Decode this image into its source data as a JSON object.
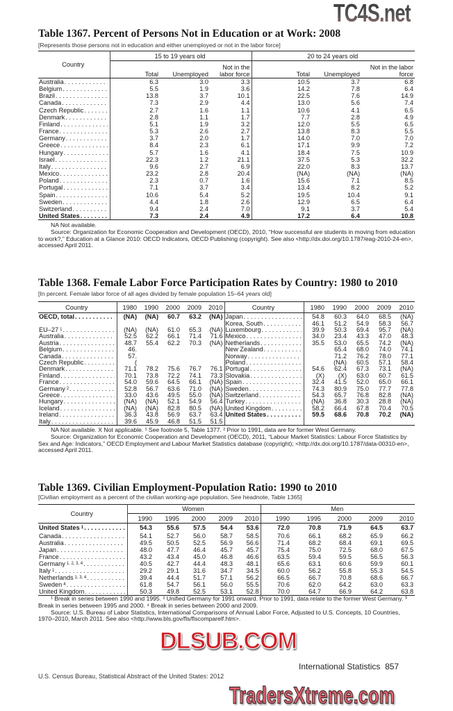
{
  "watermarks": {
    "top_right": "TC4S.net",
    "middle": "DLSUB.COM",
    "bottom": "TradersXtreme.com"
  },
  "t1367": {
    "title": "Table 1367. Percent of Persons Not in Education or at Work: 2008",
    "subtitle": "[Represents those persons not in education and either unemployed or not in the labor force]",
    "country_header": "Country",
    "groups": [
      "15 to 19 years old",
      "20 to 24 years old"
    ],
    "columns": [
      "Total",
      "Unemployed",
      "Not in the labor force",
      "Total",
      "Unemployed",
      "Not in the labor force"
    ],
    "rows": [
      {
        "country": "Australia",
        "values": [
          "6.3",
          "3.0",
          "3.3",
          "10.5",
          "3.7",
          "6.8"
        ]
      },
      {
        "country": "Belgium",
        "values": [
          "5.5",
          "1.9",
          "3.6",
          "14.2",
          "7.8",
          "6.4"
        ]
      },
      {
        "country": "Brazil",
        "values": [
          "13.8",
          "3.7",
          "10.1",
          "22.5",
          "7.6",
          "14.9"
        ]
      },
      {
        "country": "Canada",
        "values": [
          "7.3",
          "2.9",
          "4.4",
          "13.0",
          "5.6",
          "7.4"
        ]
      },
      {
        "country": "Czech Republic",
        "values": [
          "2.7",
          "1.6",
          "1.1",
          "10.6",
          "4.1",
          "6.5"
        ]
      },
      {
        "country": "Denmark",
        "values": [
          "2.8",
          "1.1",
          "1.7",
          "7.7",
          "2.8",
          "4.9"
        ]
      },
      {
        "country": "Finland",
        "values": [
          "5.1",
          "1.9",
          "3.2",
          "12.0",
          "5.5",
          "6.5"
        ]
      },
      {
        "country": "France",
        "values": [
          "5.3",
          "2.6",
          "2.7",
          "13.8",
          "8.3",
          "5.5"
        ]
      },
      {
        "country": "Germany",
        "values": [
          "3.7",
          "2.0",
          "1.7",
          "14.0",
          "7.0",
          "7.0"
        ]
      },
      {
        "country": "Greece",
        "values": [
          "8.4",
          "2.3",
          "6.1",
          "17.1",
          "9.9",
          "7.2"
        ]
      },
      {
        "country": "Hungary",
        "values": [
          "5.7",
          "1.6",
          "4.1",
          "18.4",
          "7.5",
          "10.9"
        ]
      },
      {
        "country": "Israel",
        "values": [
          "22.3",
          "1.2",
          "21.1",
          "37.5",
          "5.3",
          "32.2"
        ]
      },
      {
        "country": "Italy",
        "values": [
          "9.6",
          "2.7",
          "6.9",
          "22.0",
          "8.3",
          "13.7"
        ]
      },
      {
        "country": "Mexico",
        "values": [
          "23.2",
          "2.8",
          "20.4",
          "(NA)",
          "(NA)",
          "(NA)"
        ]
      },
      {
        "country": "Poland",
        "values": [
          "2.3",
          "0.7",
          "1.6",
          "15.6",
          "7.1",
          "8.5"
        ]
      },
      {
        "country": "Portugal",
        "values": [
          "7.1",
          "3.7",
          "3.4",
          "13.4",
          "8.2",
          "5.2"
        ]
      },
      {
        "country": "Spain",
        "values": [
          "10.6",
          "5.4",
          "5.2",
          "19.5",
          "10.4",
          "9.1"
        ]
      },
      {
        "country": "Sweden",
        "values": [
          "4.4",
          "1.8",
          "2.6",
          "12.9",
          "6.5",
          "6.4"
        ]
      },
      {
        "country": "Switzerland",
        "values": [
          "9.4",
          "2.4",
          "7.0",
          "9.1",
          "3.7",
          "5.4"
        ]
      },
      {
        "country": "United States",
        "emphasis": true,
        "values": [
          "7.3",
          "2.4",
          "4.9",
          "17.2",
          "6.4",
          "10.8"
        ]
      }
    ],
    "notes": [
      "NA Not available.",
      "Source: Organization for Economic Cooperation and Development (OECD), 2010, “How successful are students in moving from education to work?,” Education at a Glance 2010: OECD Indicators, OECD Publishing (copyright). See also <http://dx.doi.org/10.1787/eag-2010-24-en>, accessed April 2011."
    ]
  },
  "t1368": {
    "title": "Table 1368. Female Labor Force Participation Rates by Country: 1980 to 2010",
    "subtitle": "[In percent. Female labor force of all ages divided by female population 15–64 years old]",
    "country_header": "Country",
    "years": [
      "1980",
      "1990",
      "2000",
      "2009",
      "2010"
    ],
    "left": [
      {
        "country": "OECD, total",
        "emphasis": true,
        "values": [
          "(NA)",
          "(NA)",
          "60.7",
          "63.2",
          "(NA)"
        ]
      },
      {
        "country": "",
        "values": [
          "",
          "",
          "",
          "",
          ""
        ]
      },
      {
        "country": "EU–27",
        "note": "1",
        "values": [
          "(NA)",
          "(NA)",
          "61.0",
          "65.3",
          "(NA)"
        ]
      },
      {
        "country": "Australia",
        "values": [
          "52.5",
          "62.2",
          "66.1",
          "71.4",
          "71.6"
        ]
      },
      {
        "country": "Austria",
        "values": [
          "48.7",
          "55.4",
          "62.2",
          "70.3",
          "(NA)"
        ]
      },
      {
        "country": "Belgium",
        "values": [
          "46.",
          "",
          "",
          "",
          ""
        ]
      },
      {
        "country": "Canada",
        "values": [
          "57.",
          "",
          "",
          "",
          ""
        ]
      },
      {
        "country": "Czech Republic",
        "values": [
          "(",
          "",
          "",
          "",
          ""
        ]
      },
      {
        "country": "Denmark",
        "values": [
          "71.1",
          "78.2",
          "75.6",
          "76.7",
          "76.1"
        ]
      },
      {
        "country": "Finland",
        "values": [
          "70.1",
          "73.8",
          "72.2",
          "74.1",
          "73.3"
        ]
      },
      {
        "country": "France",
        "values": [
          "54.0",
          "59.6",
          "64.5",
          "66.1",
          "(NA)"
        ]
      },
      {
        "country": "Germany",
        "note": "2",
        "values": [
          "52.8",
          "56.7",
          "63.6",
          "71.0",
          "(NA)"
        ]
      },
      {
        "country": "Greece",
        "values": [
          "33.0",
          "43.6",
          "49.5",
          "55.0",
          "(NA)"
        ]
      },
      {
        "country": "Hungary",
        "values": [
          "(NA)",
          "(NA)",
          "52.1",
          "54.9",
          "56.4"
        ]
      },
      {
        "country": "Iceland",
        "values": [
          "(NA)",
          "(NA)",
          "82.8",
          "80.5",
          "(NA)"
        ]
      },
      {
        "country": "Ireland",
        "values": [
          "36.3",
          "43.8",
          "56.9",
          "63.7",
          "63.4"
        ]
      },
      {
        "country": "Italy",
        "values": [
          "39.6",
          "45.9",
          "46.8",
          "51.5",
          "51.5"
        ]
      }
    ],
    "right": [
      {
        "country": "Japan",
        "values": [
          "54.8",
          "60.3",
          "64.0",
          "68.5",
          "(NA)"
        ]
      },
      {
        "country": "Korea, South",
        "values": [
          "46.1",
          "51.2",
          "54.9",
          "58.3",
          "56.7"
        ]
      },
      {
        "country": "Luxembourg",
        "values": [
          "39.9",
          "50.3",
          "69.4",
          "95.7",
          "(NA)"
        ]
      },
      {
        "country": "Mexico",
        "values": [
          "34.0",
          "23.4",
          "43.3",
          "47.0",
          "48.3"
        ]
      },
      {
        "country": "Netherlands",
        "values": [
          "35.5",
          "53.0",
          "65.5",
          "74.2",
          "(NA)"
        ]
      },
      {
        "country": "New Zealand",
        "values": [
          "",
          "65.4",
          "68.0",
          "74.0",
          "74.1"
        ]
      },
      {
        "country": "Norway",
        "values": [
          "",
          "71.2",
          "76.2",
          "78.0",
          "77.1"
        ]
      },
      {
        "country": "Poland",
        "values": [
          "",
          "(NA)",
          "60.5",
          "57.1",
          "58.4"
        ]
      },
      {
        "country": "Portugal",
        "values": [
          "54.6",
          "62.4",
          "67.3",
          "73.1",
          "(NA)"
        ]
      },
      {
        "country": "Slovakia",
        "values": [
          "(X)",
          "(X)",
          "63.0",
          "60.7",
          "61.5"
        ]
      },
      {
        "country": "Spain",
        "values": [
          "32.4",
          "41.5",
          "52.0",
          "65.0",
          "66.1"
        ]
      },
      {
        "country": "Sweden",
        "values": [
          "74.3",
          "80.9",
          "75.0",
          "77.7",
          "77.8"
        ]
      },
      {
        "country": "Switzerland",
        "values": [
          "54.3",
          "65.7",
          "76.8",
          "82.8",
          "(NA)"
        ]
      },
      {
        "country": "Turkey",
        "values": [
          "(NA)",
          "36.8",
          "30.3",
          "28.8",
          "(NA)"
        ]
      },
      {
        "country": "United Kingdom",
        "values": [
          "58.2",
          "66.4",
          "67.8",
          "70.4",
          "70.5"
        ]
      },
      {
        "country": "United States",
        "emphasis": true,
        "values": [
          "59.5",
          "68.6",
          "70.8",
          "70.2",
          "(NA)"
        ]
      },
      {
        "country": "",
        "values": [
          "",
          "",
          "",
          "",
          ""
        ]
      }
    ],
    "notes": [
      "NA Not available. X Not applicable. ¹ See footnote 5, Table 1377. ² Prior to 1991, data are for former West Germany.",
      "Source: Organization for Economic Cooperation and Development (OECD), 2011, “Labour Market Statistics: Labour Force Statistics by Sex and Age: Indicators,” OECD Employment and Labour Market Statistics database (copyright); <http://dx.doi.org/10.1787/data-00310-en>, accessed April 2011."
    ]
  },
  "t1369": {
    "title": "Table 1369. Civilian Employment-Population Ratio: 1990 to 2010",
    "subtitle": "[Civilian employment as a percent of the civilian working-age population. See headnote, Table 1365]",
    "country_header": "Country",
    "groups": [
      "Women",
      "Men"
    ],
    "years": [
      "1990",
      "1995",
      "2000",
      "2009",
      "2010",
      "1990",
      "1995",
      "2000",
      "2009",
      "2010"
    ],
    "rows": [
      {
        "country": "United States",
        "note": "1",
        "emphasis": true,
        "values": [
          "54.3",
          "55.6",
          "57.5",
          "54.4",
          "53.6",
          "72.0",
          "70.8",
          "71.9",
          "64.5",
          "63.7"
        ]
      },
      {
        "country": "Canada",
        "values": [
          "54.1",
          "52.7",
          "56.0",
          "58.7",
          "58.5",
          "70.6",
          "66.1",
          "68.2",
          "65.9",
          "66.2"
        ]
      },
      {
        "country": "Australia",
        "values": [
          "49.5",
          "50.5",
          "52.5",
          "56.9",
          "56.6",
          "71.4",
          "68.2",
          "68.4",
          "69.1",
          "69.5"
        ]
      },
      {
        "country": "Japan",
        "values": [
          "48.0",
          "47.7",
          "46.4",
          "45.7",
          "45.7",
          "75.4",
          "75.0",
          "72.5",
          "68.0",
          "67.5"
        ]
      },
      {
        "country": "France",
        "values": [
          "43.2",
          "43.4",
          "45.0",
          "46.8",
          "46.6",
          "63.5",
          "59.4",
          "59.5",
          "56.5",
          "56.3"
        ]
      },
      {
        "country": "Germany",
        "note": "1, 2, 3, 4",
        "values": [
          "40.5",
          "42.7",
          "44.4",
          "48.3",
          "48.1",
          "65.6",
          "63.1",
          "60.6",
          "59.9",
          "60.1"
        ]
      },
      {
        "country": "Italy",
        "note": "1",
        "values": [
          "29.2",
          "29.1",
          "31.6",
          "34.7",
          "34.5",
          "60.0",
          "56.2",
          "55.8",
          "55.3",
          "54.5"
        ]
      },
      {
        "country": "Netherlands",
        "note": "1, 3, 4",
        "values": [
          "39.4",
          "44.4",
          "51.7",
          "57.1",
          "56.2",
          "66.5",
          "66.7",
          "70.8",
          "68.6",
          "66.7"
        ]
      },
      {
        "country": "Sweden",
        "note": "4",
        "values": [
          "61.8",
          "54.7",
          "56.1",
          "56.0",
          "55.5",
          "70.6",
          "62.0",
          "64.2",
          "63.0",
          "63.3"
        ]
      },
      {
        "country": "United Kingdom",
        "values": [
          "50.3",
          "49.8",
          "52.5",
          "53.1",
          "52.8",
          "70.0",
          "64.7",
          "66.9",
          "64.2",
          "63.8"
        ]
      }
    ],
    "notes": [
      "¹ Break in series between 1990 and 1995. ² Unified Germany for 1991 onward. Prior to 1991, data relate to the former West Germany. ³ Break in series between 1995 and 2000. ⁴ Break in series between 2000 and 2009.",
      "Source: U.S. Bureau of Labor Statistics, International Comparisons of Annual Labor Force, Adjusted to U.S. Concepts, 10 Countries, 1970–2010, March 2011. See also <http://www.bls.gov/fls/flscomparelf.htm>."
    ]
  },
  "footer": {
    "left": "U.S. Census Bureau, Statistical Abstract of the United States: 2012",
    "section": "International Statistics",
    "page": "857"
  }
}
